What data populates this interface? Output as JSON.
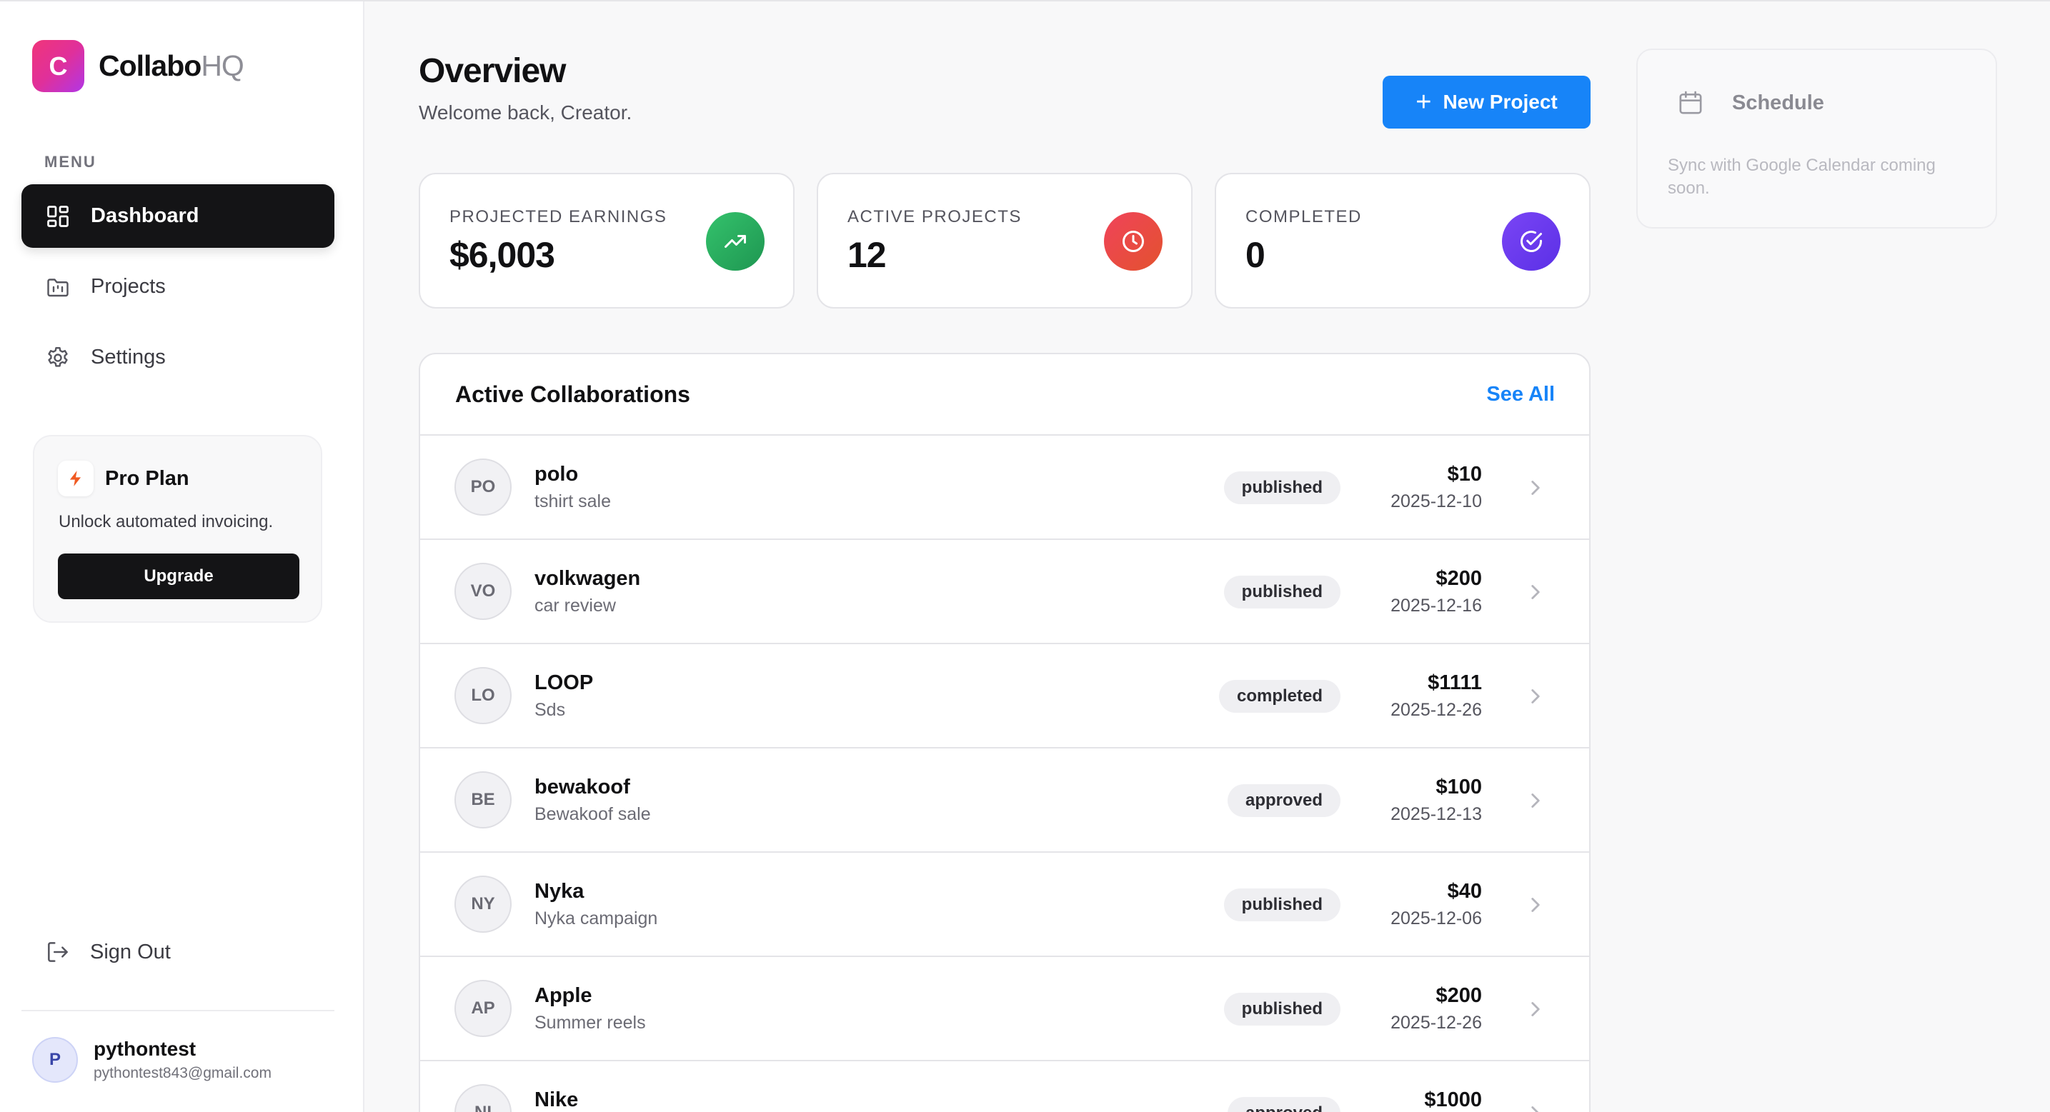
{
  "brand": {
    "logo_letter": "C",
    "name_main": "Collabo",
    "name_suffix": "HQ"
  },
  "sidebar": {
    "menu_label": "MENU",
    "items": [
      {
        "label": "Dashboard",
        "icon": "dashboard-icon",
        "active": true
      },
      {
        "label": "Projects",
        "icon": "folder-icon",
        "active": false
      },
      {
        "label": "Settings",
        "icon": "gear-icon",
        "active": false
      }
    ],
    "pro_plan": {
      "title": "Pro Plan",
      "description": "Unlock automated invoicing.",
      "button": "Upgrade",
      "icon": "lightning-icon",
      "accent": "#f05a22"
    },
    "sign_out": "Sign Out",
    "user": {
      "initial": "P",
      "name": "pythontest",
      "email": "pythontest843@gmail.com"
    }
  },
  "header": {
    "title": "Overview",
    "subtitle": "Welcome back, Creator.",
    "new_project_label": "New Project",
    "new_project_icon": "plus-icon"
  },
  "stats": [
    {
      "label": "PROJECTED EARNINGS",
      "value": "$6,003",
      "icon": "trending-up-icon",
      "color": "#22a35a"
    },
    {
      "label": "ACTIVE PROJECTS",
      "value": "12",
      "icon": "clock-icon",
      "color": "#e5333f"
    },
    {
      "label": "COMPLETED",
      "value": "0",
      "icon": "check-circle-icon",
      "color": "#6d3ff0"
    }
  ],
  "schedule": {
    "title": "Schedule",
    "note": "Sync with Google Calendar coming soon.",
    "icon": "calendar-icon"
  },
  "collaborations": {
    "title": "Active Collaborations",
    "see_all": "See All",
    "rows": [
      {
        "initials": "PO",
        "name": "polo",
        "description": "tshirt sale",
        "status": "published",
        "amount": "$10",
        "date": "2025-12-10"
      },
      {
        "initials": "VO",
        "name": "volkwagen",
        "description": "car review",
        "status": "published",
        "amount": "$200",
        "date": "2025-12-16"
      },
      {
        "initials": "LO",
        "name": "LOOP",
        "description": "Sds",
        "status": "completed",
        "amount": "$1111",
        "date": "2025-12-26"
      },
      {
        "initials": "BE",
        "name": "bewakoof",
        "description": "Bewakoof sale",
        "status": "approved",
        "amount": "$100",
        "date": "2025-12-13"
      },
      {
        "initials": "NY",
        "name": "Nyka",
        "description": "Nyka campaign",
        "status": "published",
        "amount": "$40",
        "date": "2025-12-06"
      },
      {
        "initials": "AP",
        "name": "Apple",
        "description": "Summer reels",
        "status": "published",
        "amount": "$200",
        "date": "2025-12-26"
      },
      {
        "initials": "NI",
        "name": "Nike",
        "description": "",
        "status": "approved",
        "amount": "$1000",
        "date": ""
      }
    ]
  },
  "colors": {
    "accent": "#1784f8",
    "sidebar_active": "#141416"
  }
}
